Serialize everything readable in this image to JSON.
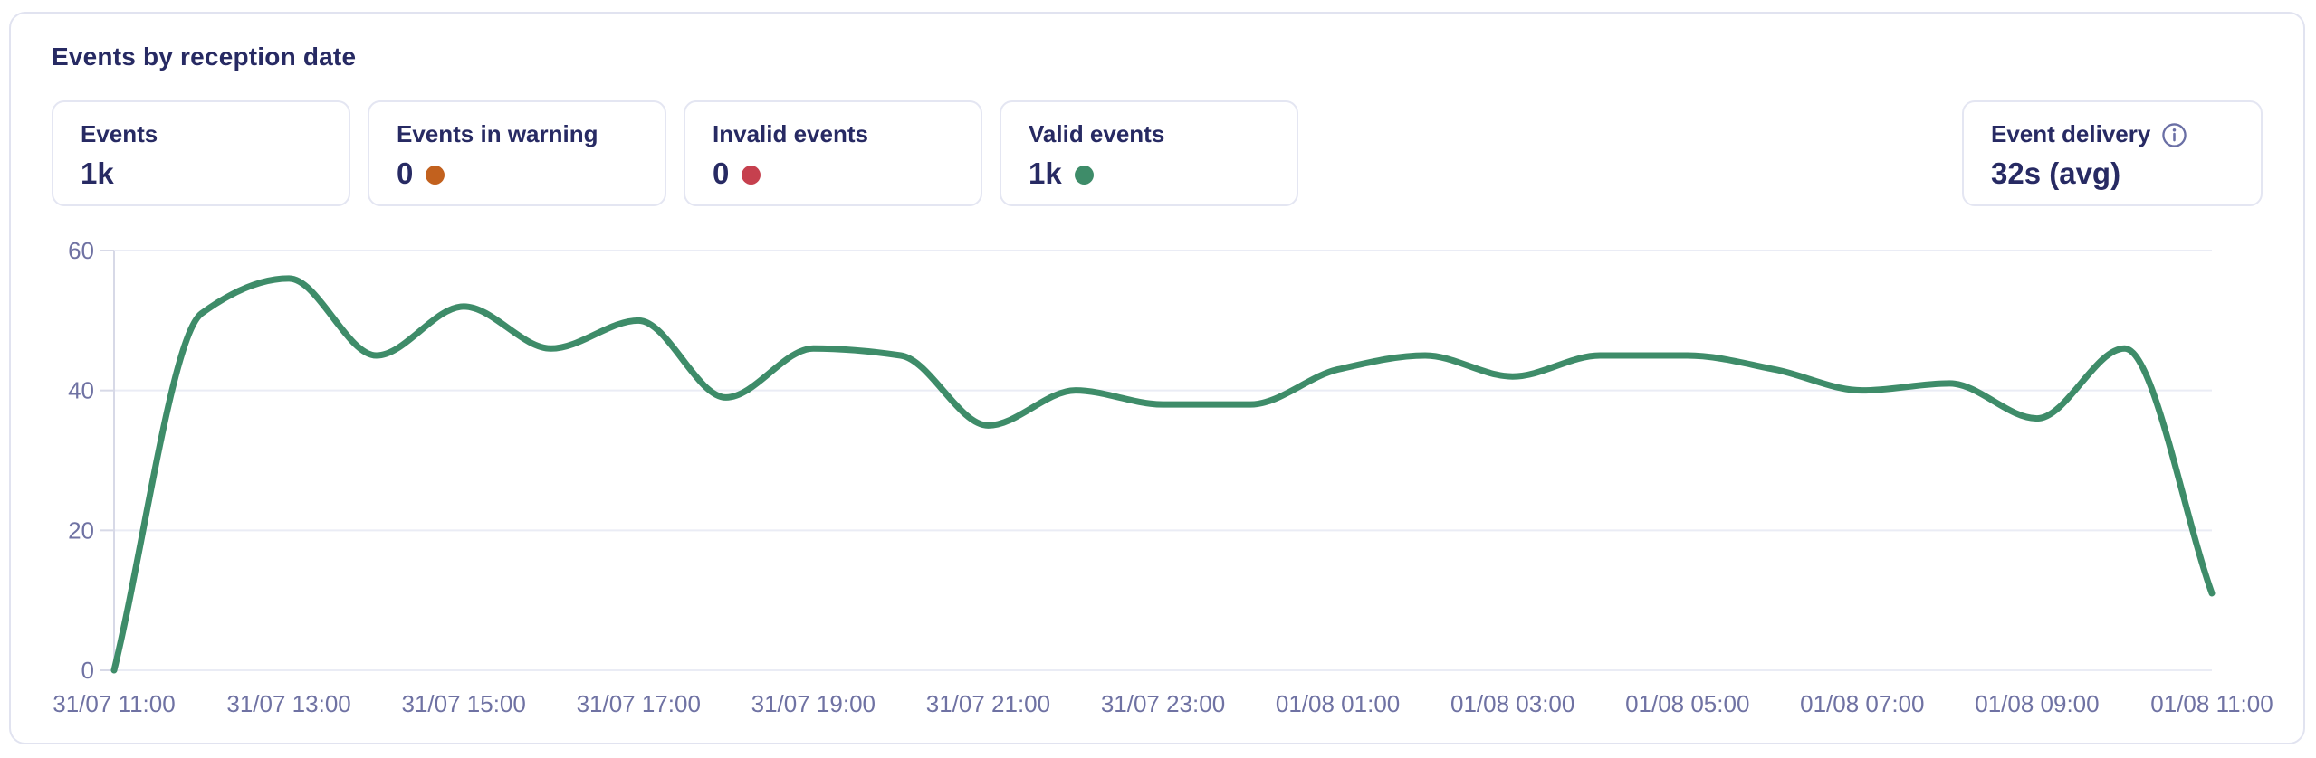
{
  "header": {
    "title": "Events by reception date"
  },
  "stats": {
    "cards": [
      {
        "label": "Events",
        "value": "1k"
      },
      {
        "label": "Events in warning",
        "value": "0",
        "dot_color": "#c2611e"
      },
      {
        "label": "Invalid events",
        "value": "0",
        "dot_color": "#c6404e"
      },
      {
        "label": "Valid events",
        "value": "1k",
        "dot_color": "#3e8c69"
      }
    ],
    "delivery": {
      "label": "Event delivery",
      "value": "32s (avg)",
      "info_icon": "info-icon"
    }
  },
  "colors": {
    "navy_text": "#272a63",
    "axis_label": "#6f72a3",
    "gridline": "#eaecf5",
    "axis_line": "#d7d9e7",
    "line": "#3e8c69",
    "warning_dot": "#c2611e",
    "invalid_dot": "#c6404e",
    "valid_dot": "#3e8c69",
    "card_border": "#e4e6f2",
    "panel_border": "#e1e3f0",
    "background": "#ffffff"
  },
  "chart_data": {
    "type": "line",
    "title": "Events by reception date",
    "xlabel": "",
    "ylabel": "",
    "ylim": [
      0,
      60
    ],
    "yticks": [
      0,
      20,
      40,
      60
    ],
    "grid": "horizontal",
    "legend": "none",
    "line_color": "#3e8c69",
    "x": [
      "31/07 11:00",
      "31/07 12:00",
      "31/07 13:00",
      "31/07 14:00",
      "31/07 15:00",
      "31/07 16:00",
      "31/07 17:00",
      "31/07 18:00",
      "31/07 19:00",
      "31/07 20:00",
      "31/07 21:00",
      "31/07 22:00",
      "31/07 23:00",
      "01/08 00:00",
      "01/08 01:00",
      "01/08 02:00",
      "01/08 03:00",
      "01/08 04:00",
      "01/08 05:00",
      "01/08 06:00",
      "01/08 07:00",
      "01/08 08:00",
      "01/08 09:00",
      "01/08 10:00",
      "01/08 11:00"
    ],
    "values": [
      0,
      51,
      56,
      45,
      52,
      46,
      50,
      39,
      46,
      45,
      35,
      40,
      38,
      38,
      43,
      45,
      42,
      45,
      45,
      43,
      40,
      41,
      36,
      46,
      11
    ],
    "x_tick_every": 2,
    "x_tick_labels": [
      "31/07 11:00",
      "31/07 13:00",
      "31/07 15:00",
      "31/07 17:00",
      "31/07 19:00",
      "31/07 21:00",
      "31/07 23:00",
      "01/08 01:00",
      "01/08 03:00",
      "01/08 05:00",
      "01/08 07:00",
      "01/08 09:00",
      "01/08 11:00"
    ]
  }
}
